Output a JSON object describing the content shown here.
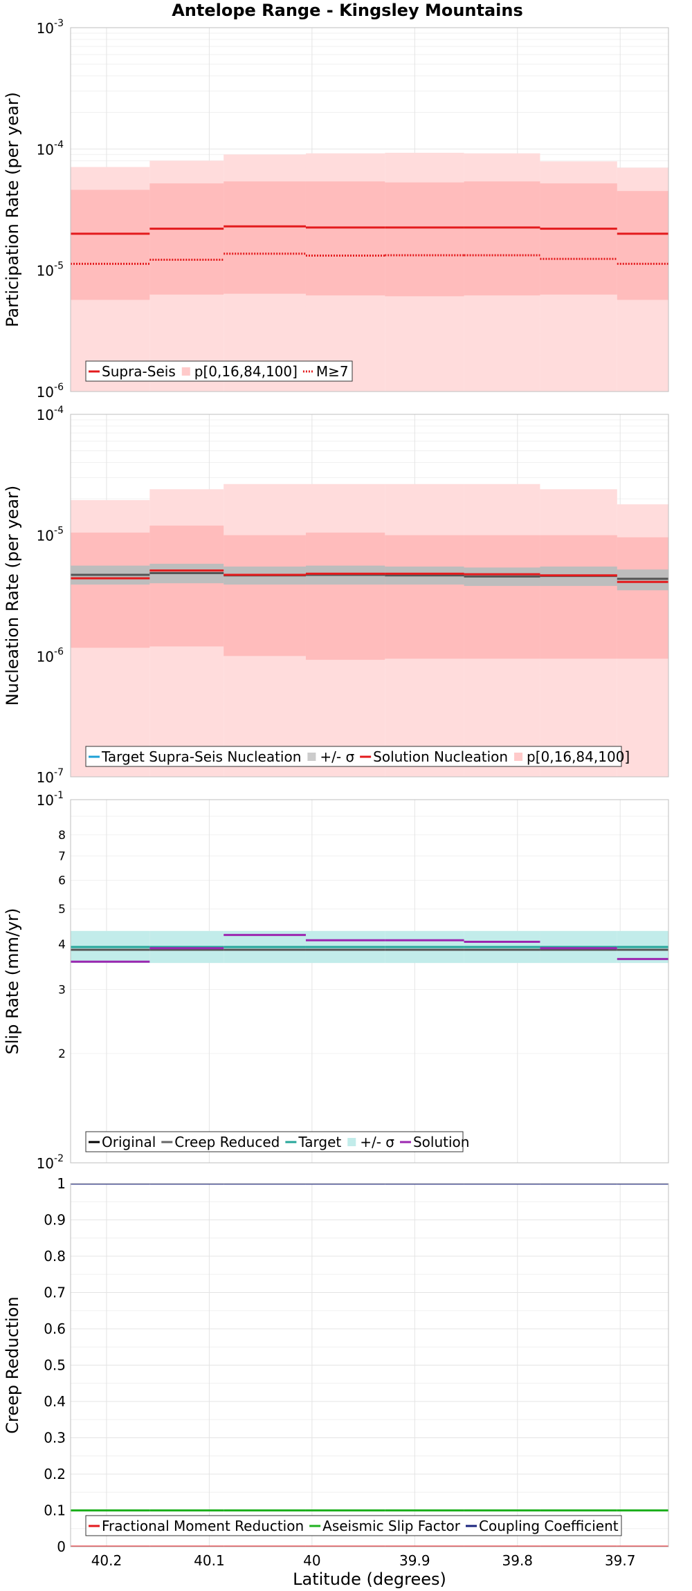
{
  "chart_data": {
    "title": "Antelope Range - Kingsley Mountains",
    "xlabel": "Latitude (degrees)",
    "xlim": [
      40.235,
      39.653
    ],
    "xticks": [
      40.2,
      40.1,
      40,
      39.9,
      39.8,
      39.7
    ],
    "xtick_labels": [
      "40.2",
      "40.1",
      "40",
      "39.9",
      "39.8",
      "39.7"
    ],
    "x_edges": [
      40.235,
      40.158,
      40.086,
      40.006,
      39.929,
      39.852,
      39.778,
      39.703,
      39.653
    ],
    "grid": true,
    "panels": [
      {
        "type": "line",
        "ylabel": "Participation Rate (per year)",
        "yscale": "log",
        "ylim": [
          1e-06,
          0.001
        ],
        "ytick_labels": [
          {
            "base": "10",
            "exp": "-3"
          },
          {
            "base": "10",
            "exp": "-4"
          },
          {
            "base": "10",
            "exp": "-5"
          },
          {
            "base": "10",
            "exp": "-6"
          }
        ],
        "bands": [
          {
            "name": "p[0,16,84,100]",
            "color": "#ffdcdc",
            "lower": [
              1e-06,
              1e-06,
              1e-06,
              1e-06,
              1e-06,
              1e-06,
              1e-06,
              1e-06
            ],
            "upper": [
              7.1e-05,
              8e-05,
              9e-05,
              9.2e-05,
              9.3e-05,
              9.2e-05,
              7.9e-05,
              7e-05
            ]
          },
          {
            "name": "",
            "color": "#ffbcbc",
            "lower": [
              5.7e-06,
              6.3e-06,
              6.4e-06,
              6.2e-06,
              6.1e-06,
              6.2e-06,
              6.3e-06,
              5.7e-06
            ],
            "upper": [
              4.6e-05,
              5.2e-05,
              5.4e-05,
              5.4e-05,
              5.3e-05,
              5.4e-05,
              5.2e-05,
              4.5e-05
            ]
          }
        ],
        "series": [
          {
            "name": "Supra-Seis",
            "color": "#e31a1c",
            "style": "solid",
            "values": [
              2e-05,
              2.2e-05,
              2.3e-05,
              2.25e-05,
              2.25e-05,
              2.25e-05,
              2.2e-05,
              2e-05
            ]
          },
          {
            "name": "M≥7",
            "color": "#e31a1c",
            "style": "dotted",
            "values": [
              1.13e-05,
              1.22e-05,
              1.37e-05,
              1.32e-05,
              1.33e-05,
              1.33e-05,
              1.24e-05,
              1.13e-05
            ]
          }
        ],
        "legend": {
          "location": "bottom-left",
          "entries": [
            {
              "label": "Supra-Seis",
              "kind": "line",
              "color": "#e31a1c",
              "style": "solid"
            },
            {
              "label": "p[0,16,84,100]",
              "kind": "patch",
              "color": "#ffcaca"
            },
            {
              "label": "M≥7",
              "kind": "line",
              "color": "#e31a1c",
              "style": "dotted"
            }
          ]
        }
      },
      {
        "type": "line",
        "ylabel": "Nucleation Rate (per year)",
        "yscale": "log",
        "ylim": [
          1e-07,
          0.0001
        ],
        "ytick_labels": [
          {
            "base": "10",
            "exp": "-4"
          },
          {
            "base": "10",
            "exp": "-5"
          },
          {
            "base": "10",
            "exp": "-6"
          },
          {
            "base": "10",
            "exp": "-7"
          }
        ],
        "bands": [
          {
            "name": "p[0,16,84,100]",
            "color": "#ffdcdc",
            "lower": [
              1e-07,
              1e-07,
              1e-07,
              1e-07,
              1e-07,
              1e-07,
              1e-07,
              1e-07
            ],
            "upper": [
              1.95e-05,
              2.4e-05,
              2.65e-05,
              2.65e-05,
              2.65e-05,
              2.65e-05,
              2.4e-05,
              1.8e-05
            ]
          },
          {
            "name": "",
            "color": "#ffbcbc",
            "lower": [
              1.17e-06,
              1.2e-06,
              1e-06,
              9.3e-07,
              9.5e-07,
              9.5e-07,
              9.5e-07,
              9.5e-07
            ],
            "upper": [
              1.05e-05,
              1.2e-05,
              1e-05,
              1.05e-05,
              1e-05,
              1e-05,
              1e-05,
              9.6e-06
            ]
          },
          {
            "name": "+/- σ",
            "color": "#bdbdbd",
            "lower": [
              3.9e-06,
              4e-06,
              3.9e-06,
              3.9e-06,
              3.9e-06,
              3.8e-06,
              3.8e-06,
              3.5e-06
            ],
            "upper": [
              5.6e-06,
              5.8e-06,
              5.5e-06,
              5.6e-06,
              5.5e-06,
              5.4e-06,
              5.5e-06,
              5.2e-06
            ]
          }
        ],
        "series": [
          {
            "name": "Target Supra-Seis Nucleation",
            "color": "#555555",
            "style": "solid",
            "values": [
              4.7e-06,
              4.85e-06,
              4.65e-06,
              4.7e-06,
              4.65e-06,
              4.55e-06,
              4.6e-06,
              4.35e-06
            ]
          },
          {
            "name": "Solution Nucleation",
            "color": "#e31a1c",
            "style": "solid",
            "values": [
              4.4e-06,
              5.1e-06,
              4.7e-06,
              4.8e-06,
              4.8e-06,
              4.75e-06,
              4.65e-06,
              4.1e-06
            ]
          }
        ],
        "legend": {
          "location": "bottom-left",
          "entries": [
            {
              "label": "Target Supra-Seis Nucleation",
              "kind": "line",
              "color": "#1ea0d6",
              "style": "solid"
            },
            {
              "label": "+/- σ",
              "kind": "patch",
              "color": "#cccccc"
            },
            {
              "label": "Solution Nucleation",
              "kind": "line",
              "color": "#e31a1c",
              "style": "solid"
            },
            {
              "label": "p[0,16,84,100]",
              "kind": "patch",
              "color": "#ffcaca"
            }
          ]
        }
      },
      {
        "type": "line",
        "ylabel": "Slip Rate (mm/yr)",
        "yscale": "log",
        "ylim": [
          0.01,
          0.1
        ],
        "ytick_labels": [
          {
            "base": "10",
            "exp": "-1"
          },
          {
            "base": "10",
            "exp": "-2"
          }
        ],
        "minor_ticks": [
          {
            "value": 0.08,
            "label": "8"
          },
          {
            "value": 0.07,
            "label": "7"
          },
          {
            "value": 0.06,
            "label": "6"
          },
          {
            "value": 0.05,
            "label": "5"
          },
          {
            "value": 0.04,
            "label": "4"
          },
          {
            "value": 0.03,
            "label": "3"
          },
          {
            "value": 0.02,
            "label": "2"
          }
        ],
        "bands": [
          {
            "name": "+/- σ",
            "color": "#c2ecea",
            "lower": [
              0.0355,
              0.0355,
              0.0355,
              0.0355,
              0.0355,
              0.0355,
              0.0355,
              0.0355
            ],
            "upper": [
              0.0435,
              0.0435,
              0.0435,
              0.0435,
              0.0435,
              0.0435,
              0.0435,
              0.0435
            ]
          }
        ],
        "series": [
          {
            "name": "Target",
            "color": "#26a69a",
            "style": "solid",
            "values": [
              0.0393,
              0.0393,
              0.0393,
              0.0393,
              0.0393,
              0.0393,
              0.0393,
              0.0393
            ]
          },
          {
            "name": "Creep Reduced",
            "color": "#555555",
            "style": "solid",
            "values": [
              0.0386,
              0.0386,
              0.0386,
              0.0386,
              0.0386,
              0.0386,
              0.0386,
              0.0386
            ]
          },
          {
            "name": "Solution",
            "color": "#9c27b0",
            "style": "solid",
            "values": [
              0.0358,
              0.039,
              0.0424,
              0.041,
              0.041,
              0.0406,
              0.039,
              0.0364
            ]
          }
        ],
        "legend": {
          "location": "bottom-left",
          "entries": [
            {
              "label": "Original",
              "kind": "line",
              "color": "#000000",
              "style": "solid"
            },
            {
              "label": "Creep Reduced",
              "kind": "line",
              "color": "#666666",
              "style": "solid"
            },
            {
              "label": "Target",
              "kind": "line",
              "color": "#26a69a",
              "style": "solid"
            },
            {
              "label": "+/- σ",
              "kind": "patch",
              "color": "#c2ecea"
            },
            {
              "label": "Solution",
              "kind": "line",
              "color": "#9c27b0",
              "style": "solid"
            }
          ]
        }
      },
      {
        "type": "line",
        "ylabel": "Creep Reduction",
        "yscale": "linear",
        "ylim": [
          0,
          1
        ],
        "yticks": [
          0,
          0.1,
          0.2,
          0.3,
          0.4,
          0.5,
          0.6,
          0.7,
          0.8,
          0.9,
          1
        ],
        "ytick_labels": [
          "0",
          "0.1",
          "0.2",
          "0.3",
          "0.4",
          "0.5",
          "0.6",
          "0.7",
          "0.8",
          "0.9",
          "1"
        ],
        "bands": [],
        "series": [
          {
            "name": "Fractional Moment Reduction",
            "color": "#e31a1c",
            "style": "solid",
            "values": [
              0,
              0,
              0,
              0,
              0,
              0,
              0,
              0
            ]
          },
          {
            "name": "Aseismic Slip Factor",
            "color": "#1fb01f",
            "style": "solid",
            "values": [
              0.1,
              0.1,
              0.1,
              0.1,
              0.1,
              0.1,
              0.1,
              0.1
            ]
          },
          {
            "name": "Coupling Coefficient",
            "color": "#1a237e",
            "style": "solid",
            "values": [
              1,
              1,
              1,
              1,
              1,
              1,
              1,
              1
            ]
          }
        ],
        "legend": {
          "location": "bottom-left",
          "entries": [
            {
              "label": "Fractional Moment Reduction",
              "kind": "line",
              "color": "#e31a1c",
              "style": "solid"
            },
            {
              "label": "Aseismic Slip Factor",
              "kind": "line",
              "color": "#1fb01f",
              "style": "solid"
            },
            {
              "label": "Coupling Coefficient",
              "kind": "line",
              "color": "#1a237e",
              "style": "solid"
            }
          ]
        }
      }
    ]
  }
}
